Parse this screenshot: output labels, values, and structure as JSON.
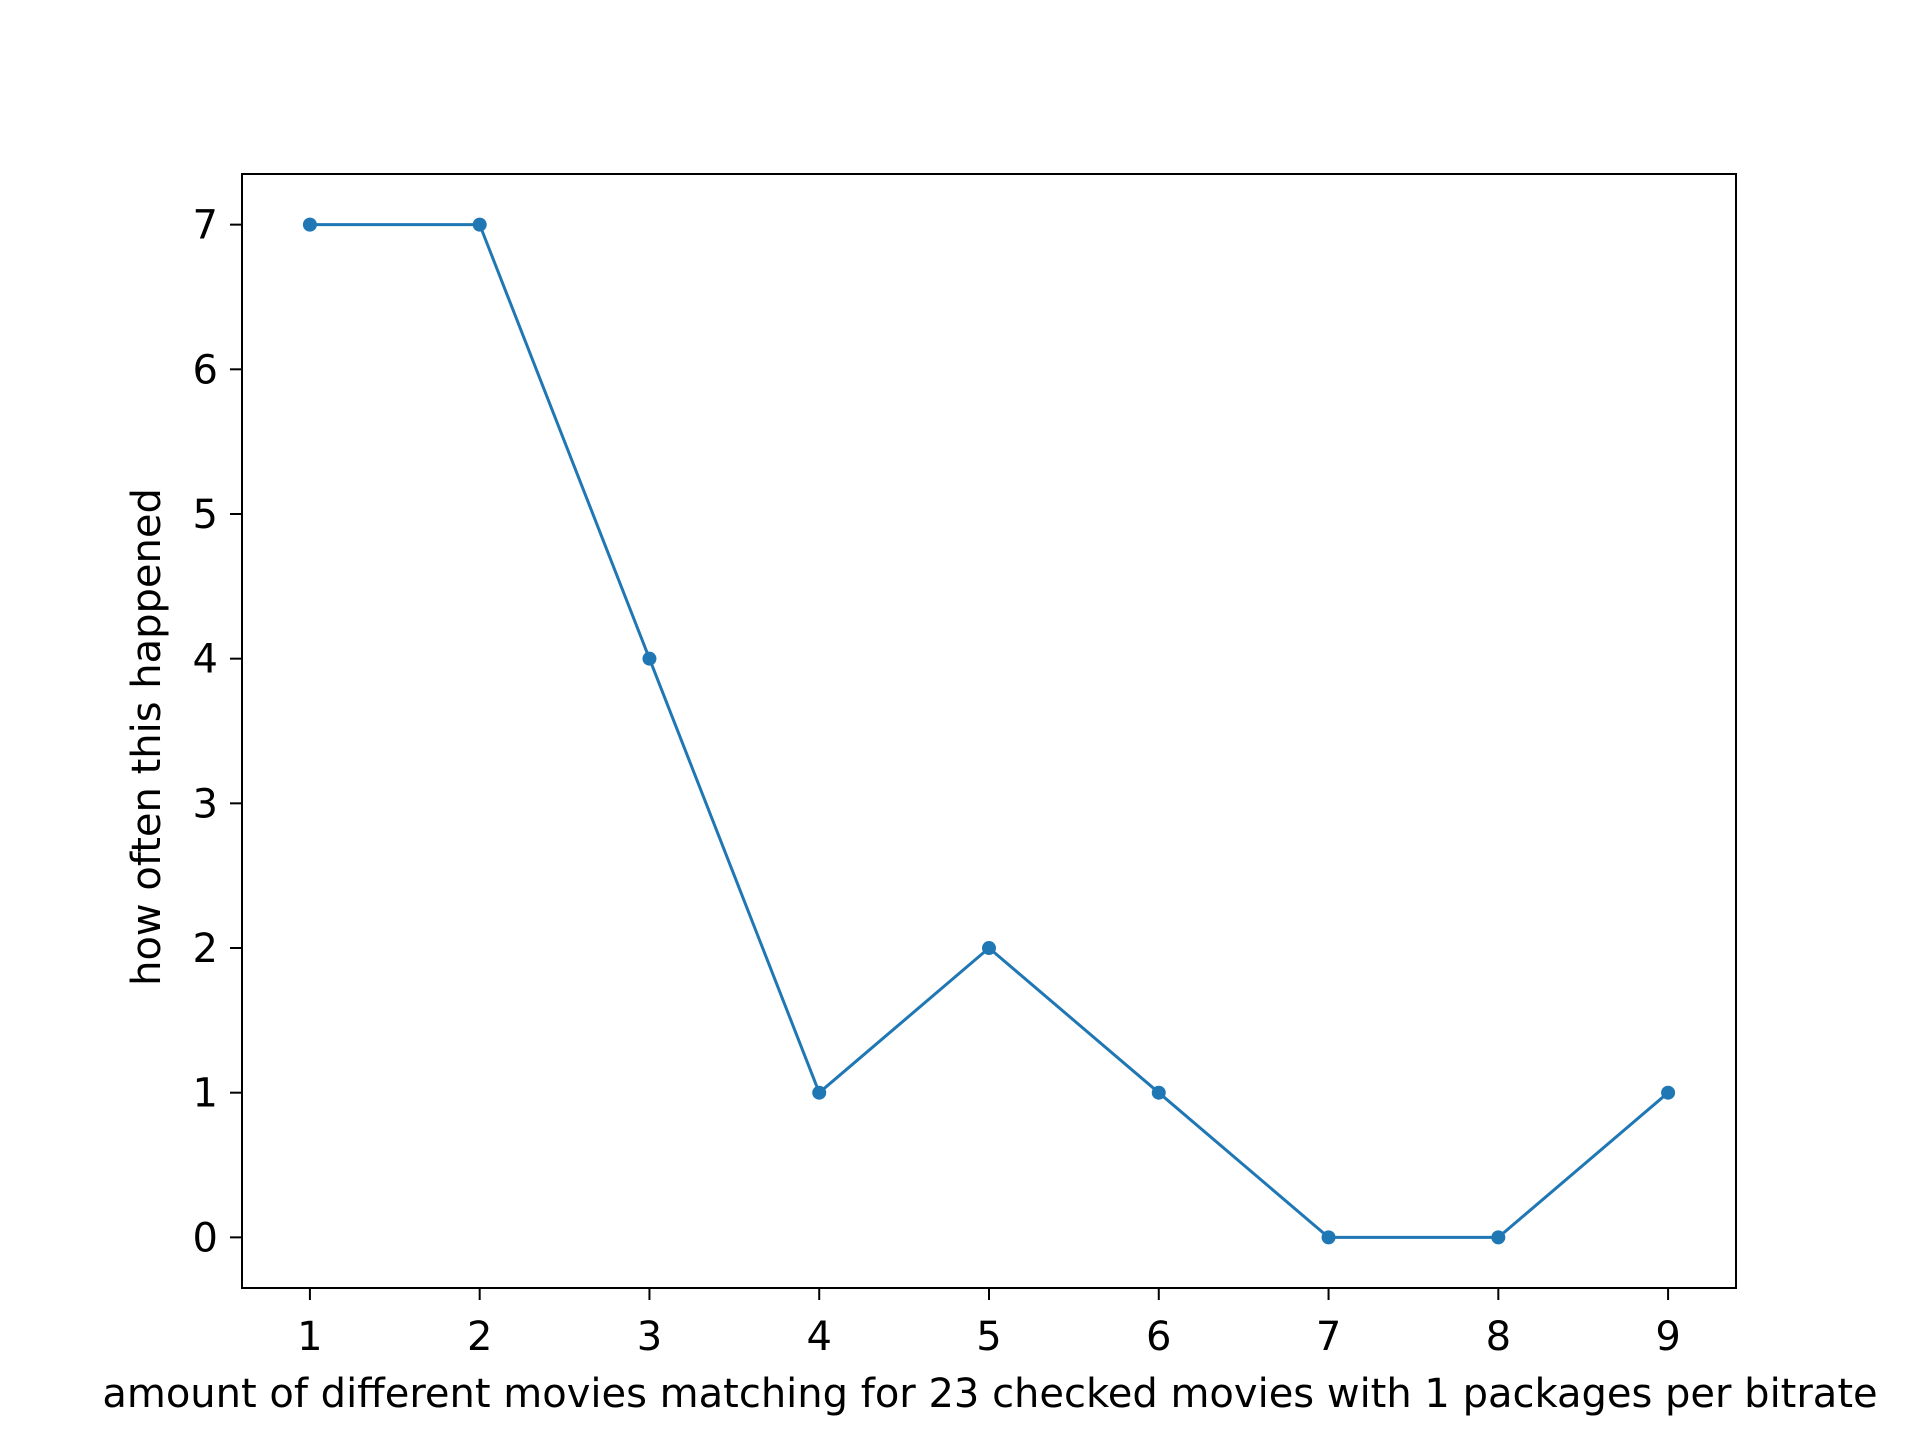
{
  "chart_data": {
    "type": "line",
    "title": "",
    "xlabel": "amount of different movies matching for 23 checked movies with 1 packages per bitrate",
    "ylabel": "how often this happened",
    "x": [
      1,
      2,
      3,
      4,
      5,
      6,
      7,
      8,
      9
    ],
    "series": [
      {
        "values": [
          7,
          7,
          4,
          1,
          2,
          1,
          0,
          0,
          1
        ],
        "color": "#1f77b4",
        "marker": "circle"
      }
    ],
    "xticks": [
      "1",
      "2",
      "3",
      "4",
      "5",
      "6",
      "7",
      "8",
      "9"
    ],
    "yticks": [
      "0",
      "1",
      "2",
      "3",
      "4",
      "5",
      "6",
      "7"
    ],
    "xlim": [
      0.6,
      9.4
    ],
    "ylim": [
      -0.35,
      7.35
    ],
    "grid": false,
    "legend": "none"
  }
}
